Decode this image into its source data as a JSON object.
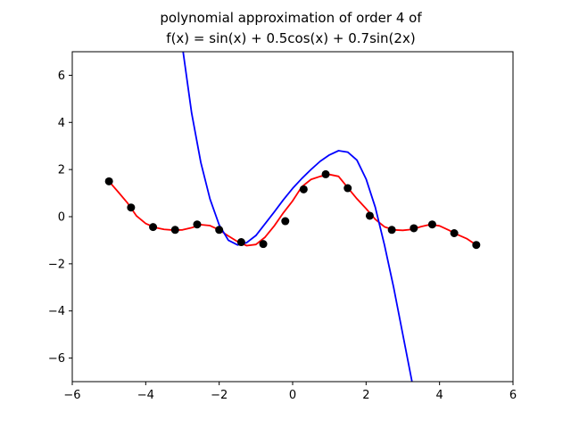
{
  "chart_data": {
    "type": "line",
    "title_lines": [
      "polynomial approximation of order 4 of",
      "f(x) = sin(x) + 0.5cos(x) + 0.7sin(2x)"
    ],
    "xlabel": "",
    "ylabel": "",
    "xlim": [
      -6,
      6
    ],
    "ylim": [
      -7,
      7
    ],
    "x_ticks": [
      -6,
      -4,
      -2,
      0,
      2,
      4,
      6
    ],
    "x_tick_labels": [
      "−6",
      "−4",
      "−2",
      "0",
      "2",
      "4",
      "6"
    ],
    "y_ticks": [
      6,
      4,
      2,
      0,
      -2,
      -4,
      -6
    ],
    "y_tick_labels": [
      "6",
      "4",
      "2",
      "0",
      "−2",
      "−4",
      "−6"
    ],
    "grid": false,
    "function": "sin(x) + 0.5cos(x) + 0.7sin(2x)",
    "series": [
      {
        "kind": "points",
        "color": "#000000",
        "x": [
          -5.0,
          -4.4,
          -3.8,
          -3.2,
          -2.6,
          -2.0,
          -1.4,
          -0.8,
          -0.2,
          0.3,
          0.9,
          1.5,
          2.1,
          2.7,
          3.3,
          3.8,
          4.4,
          5.0
        ],
        "y": [
          1.5,
          0.39,
          -0.44,
          -0.56,
          -0.33,
          -0.56,
          -1.08,
          -1.16,
          -0.19,
          1.16,
          1.8,
          1.21,
          0.04,
          -0.56,
          -0.49,
          -0.33,
          -0.7,
          -1.2
        ]
      },
      {
        "kind": "curve",
        "color": "#ff0000",
        "x": [
          -5.0,
          -4.75,
          -4.5,
          -4.25,
          -4.0,
          -3.75,
          -3.5,
          -3.25,
          -3.0,
          -2.75,
          -2.5,
          -2.25,
          -2.0,
          -1.75,
          -1.5,
          -1.25,
          -1.0,
          -0.75,
          -0.5,
          -0.25,
          0.0,
          0.25,
          0.5,
          0.75,
          1.0,
          1.25,
          1.5,
          1.75,
          2.0,
          2.25,
          2.5,
          2.75,
          3.0,
          3.25,
          3.5,
          3.75,
          4.0,
          4.25,
          4.5,
          4.75,
          5.0
        ],
        "y": [
          1.5,
          1.05,
          0.59,
          0.03,
          -0.29,
          -0.46,
          -0.54,
          -0.57,
          -0.56,
          -0.47,
          -0.34,
          -0.38,
          -0.56,
          -0.82,
          -1.06,
          -1.23,
          -1.18,
          -0.87,
          -0.39,
          0.17,
          0.67,
          1.27,
          1.58,
          1.71,
          1.79,
          1.71,
          1.23,
          0.76,
          0.34,
          -0.11,
          -0.43,
          -0.56,
          -0.58,
          -0.54,
          -0.42,
          -0.33,
          -0.39,
          -0.57,
          -0.77,
          -0.94,
          -1.2
        ]
      },
      {
        "kind": "curve",
        "color": "#0000ff",
        "x": [
          -3.0,
          -2.75,
          -2.5,
          -2.25,
          -2.0,
          -1.75,
          -1.5,
          -1.25,
          -1.0,
          -0.75,
          -0.5,
          -0.25,
          0.0,
          0.25,
          0.5,
          0.75,
          1.0,
          1.25,
          1.5,
          1.75,
          2.0,
          2.25,
          2.5,
          2.75,
          3.0,
          3.25
        ],
        "y": [
          7.2,
          4.4,
          2.3,
          0.75,
          -0.35,
          -1.0,
          -1.2,
          -1.1,
          -0.8,
          -0.3,
          0.2,
          0.72,
          1.2,
          1.62,
          2.0,
          2.35,
          2.62,
          2.8,
          2.74,
          2.4,
          1.6,
          0.4,
          -1.2,
          -3.0,
          -5.0,
          -7.0
        ]
      }
    ]
  }
}
